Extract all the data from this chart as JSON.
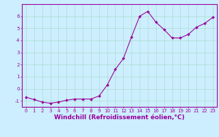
{
  "x": [
    0,
    1,
    2,
    3,
    4,
    5,
    6,
    7,
    8,
    9,
    10,
    11,
    12,
    13,
    14,
    15,
    16,
    17,
    18,
    19,
    20,
    21,
    22,
    23
  ],
  "y": [
    -0.7,
    -0.9,
    -1.1,
    -1.2,
    -1.1,
    -0.95,
    -0.85,
    -0.85,
    -0.85,
    -0.6,
    0.3,
    1.6,
    2.5,
    4.3,
    6.0,
    6.4,
    5.5,
    4.9,
    4.2,
    4.2,
    4.5,
    5.1,
    5.4,
    5.9
  ],
  "line_color": "#990099",
  "marker": "D",
  "marker_size": 2,
  "bg_color": "#cceeff",
  "grid_color": "#aaddcc",
  "xlabel": "Windchill (Refroidissement éolien,°C)",
  "xlabel_color": "#990099",
  "ylabel": "",
  "xlim": [
    -0.5,
    23.5
  ],
  "ylim": [
    -1.5,
    7.0
  ],
  "yticks": [
    -1,
    0,
    1,
    2,
    3,
    4,
    5,
    6
  ],
  "xticks": [
    0,
    1,
    2,
    3,
    4,
    5,
    6,
    7,
    8,
    9,
    10,
    11,
    12,
    13,
    14,
    15,
    16,
    17,
    18,
    19,
    20,
    21,
    22,
    23
  ],
  "tick_color": "#990099",
  "tick_fontsize": 5.0,
  "xlabel_fontsize": 6.5
}
